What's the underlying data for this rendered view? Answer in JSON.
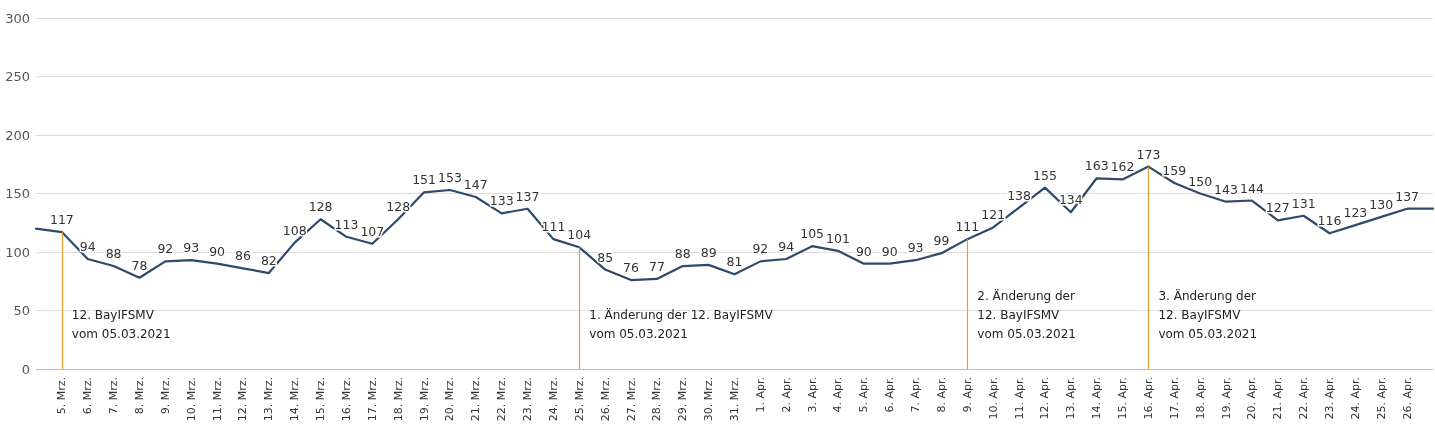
{
  "chart_data": {
    "type": "line",
    "categories": [
      null,
      "5. Mrz.",
      "6. Mrz.",
      "7. Mrz.",
      "8. Mrz.",
      "9. Mrz.",
      "10. Mrz.",
      "11. Mrz.",
      "12. Mrz.",
      "13. Mrz.",
      "14. Mrz.",
      "15. Mrz.",
      "16. Mrz.",
      "17. Mrz.",
      "18. Mrz.",
      "19. Mrz.",
      "20. Mrz.",
      "21. Mrz.",
      "22. Mrz.",
      "23. Mrz.",
      "24. Mrz.",
      "25. Mrz.",
      "26. Mrz.",
      "27. Mrz.",
      "28. Mrz.",
      "29. Mrz.",
      "30. Mrz.",
      "31. Mrz.",
      "1. Apr.",
      "2. Apr.",
      "3. Apr.",
      "4. Apr.",
      "5. Apr.",
      "6. Apr.",
      "7. Apr.",
      "8. Apr.",
      "9. Apr.",
      "10. Apr.",
      "11. Apr.",
      "12. Apr.",
      "13. Apr.",
      "14. Apr.",
      "15. Apr.",
      "16. Apr.",
      "17. Apr.",
      "18. Apr.",
      "19. Apr.",
      "20. Apr.",
      "21. Apr.",
      "22. Apr.",
      "23. Apr.",
      "24. Apr.",
      "25. Apr.",
      "26. Apr.",
      null
    ],
    "series": [
      {
        "color": "#2e4a6b",
        "values": [
          120,
          117,
          94,
          88,
          78,
          92,
          93,
          90,
          86,
          82,
          108,
          128,
          113,
          107,
          128,
          151,
          153,
          147,
          133,
          137,
          111,
          104,
          85,
          76,
          77,
          88,
          89,
          81,
          92,
          94,
          105,
          101,
          90,
          90,
          93,
          99,
          111,
          121,
          138,
          155,
          134,
          163,
          162,
          173,
          159,
          150,
          143,
          144,
          127,
          131,
          116,
          123,
          130,
          137,
          137
        ],
        "value_labels": [
          null,
          "117",
          "94",
          "88",
          "78",
          "92",
          "93",
          "90",
          "86",
          "82",
          "108",
          "128",
          "113",
          "107",
          "128",
          "151",
          "153",
          "147",
          "133",
          "137",
          "111",
          "104",
          "85",
          "76",
          "77",
          "88",
          "89",
          "81",
          "92",
          "94",
          "105",
          "101",
          "90",
          "90",
          "93",
          "99",
          "111",
          "121",
          "138",
          "155",
          "134",
          "163",
          "162",
          "173",
          "159",
          "150",
          "143",
          "144",
          "127",
          "131",
          "116",
          "123",
          "130",
          "137",
          null
        ]
      }
    ],
    "ylim": [
      0,
      300
    ],
    "yticks": [
      0,
      50,
      100,
      150,
      200,
      250,
      300
    ],
    "grid": "y",
    "marker": "none",
    "line_style": "solid",
    "ref_lines": [
      {
        "axis": "x",
        "value": "5. Mrz.",
        "label": "12. BayIFSMV\nvom 05.03.2021",
        "color": "#e39b3a"
      },
      {
        "axis": "x",
        "value": "25. Mrz.",
        "label": "1. Änderung der 12. BayIFSMV\nvom 05.03.2021",
        "color": "#e39b3a"
      },
      {
        "axis": "x",
        "value": "9. Apr.",
        "label": "2. Änderung der\n12. BayIFSMV\nvom 05.03.2021",
        "color": "#e39b3a"
      },
      {
        "axis": "x",
        "value": "16. Apr.",
        "label": "3. Änderung der\n12. BayIFSMV\nvom 05.03.2021",
        "color": "#e39b3a"
      }
    ]
  }
}
